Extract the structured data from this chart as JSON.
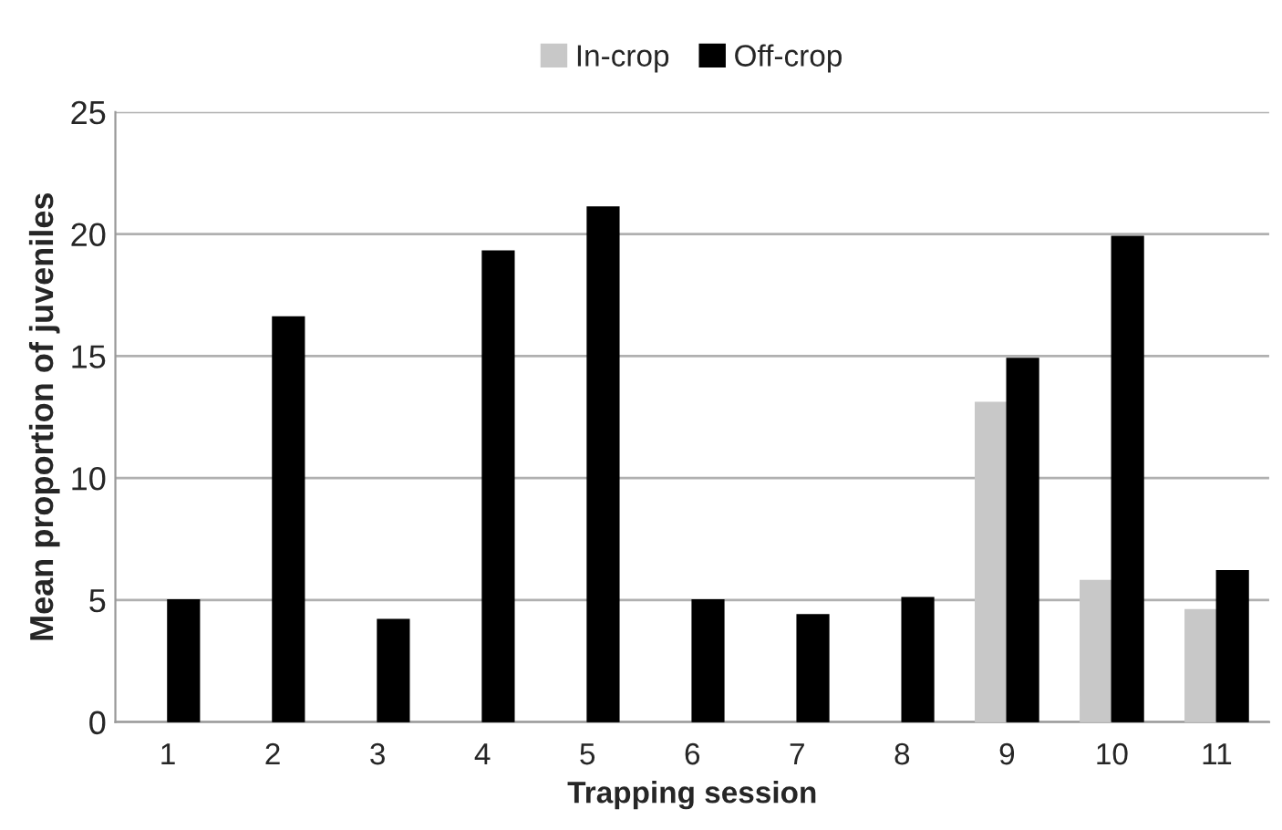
{
  "chart_data": {
    "type": "bar",
    "xlabel": "Trapping session",
    "ylabel": "Mean proportion of juveniles",
    "categories": [
      "1",
      "2",
      "3",
      "4",
      "5",
      "6",
      "7",
      "8",
      "9",
      "10",
      "11"
    ],
    "series": [
      {
        "name": "In-crop",
        "color": "#c8c8c8",
        "values": [
          null,
          null,
          null,
          null,
          null,
          null,
          null,
          null,
          13.1,
          5.8,
          4.6
        ]
      },
      {
        "name": "Off-crop",
        "color": "#000000",
        "values": [
          5.0,
          16.6,
          4.2,
          19.3,
          21.1,
          5.0,
          4.4,
          5.1,
          14.9,
          19.9,
          6.2
        ]
      }
    ],
    "ylim": [
      0,
      25
    ],
    "yticks": [
      0,
      5,
      10,
      15,
      20,
      25
    ],
    "grid": "y",
    "legend": "top"
  }
}
